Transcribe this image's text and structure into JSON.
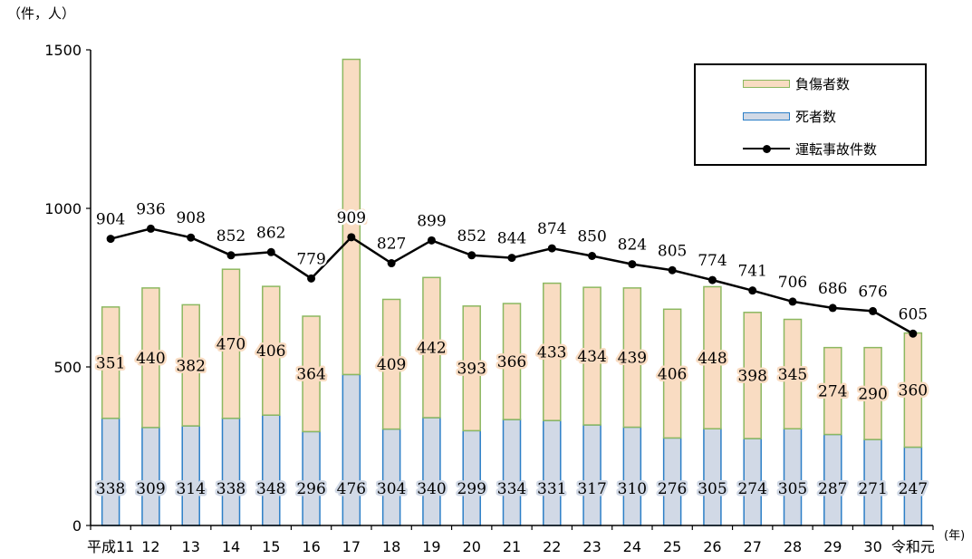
{
  "unit_label": "（件，人）",
  "year_unit_label": "(年)",
  "colors": {
    "injured_fill": "#f9dcc2",
    "injured_border": "#8cb860",
    "deaths_fill": "#d1d9e6",
    "deaths_border": "#2c7fc7",
    "line": "#000000"
  },
  "legend": {
    "injured": "負傷者数",
    "deaths": "死者数",
    "accidents": "運転事故件数"
  },
  "chart_data": {
    "type": "bar",
    "stacked": true,
    "categories": [
      "平成11",
      "12",
      "13",
      "14",
      "15",
      "16",
      "17",
      "18",
      "19",
      "20",
      "21",
      "22",
      "23",
      "24",
      "25",
      "26",
      "27",
      "28",
      "29",
      "30",
      "令和元"
    ],
    "series": [
      {
        "name": "死者数",
        "type": "bar",
        "values": [
          338,
          309,
          314,
          338,
          348,
          296,
          476,
          304,
          340,
          299,
          334,
          331,
          317,
          310,
          276,
          305,
          274,
          305,
          287,
          271,
          247
        ]
      },
      {
        "name": "負傷者数",
        "type": "bar",
        "values": [
          351,
          440,
          382,
          470,
          406,
          364,
          994,
          409,
          442,
          393,
          366,
          433,
          434,
          439,
          406,
          448,
          398,
          345,
          274,
          290,
          360
        ]
      },
      {
        "name": "運転事故件数",
        "type": "line",
        "values": [
          904,
          936,
          908,
          852,
          862,
          779,
          909,
          827,
          899,
          852,
          844,
          874,
          850,
          824,
          805,
          774,
          741,
          706,
          686,
          676,
          605
        ]
      }
    ],
    "y_ticks": [
      "0",
      "500",
      "1000",
      "1500"
    ],
    "ylim": [
      0,
      1500
    ],
    "grid": false,
    "legend_position": "top-right"
  }
}
